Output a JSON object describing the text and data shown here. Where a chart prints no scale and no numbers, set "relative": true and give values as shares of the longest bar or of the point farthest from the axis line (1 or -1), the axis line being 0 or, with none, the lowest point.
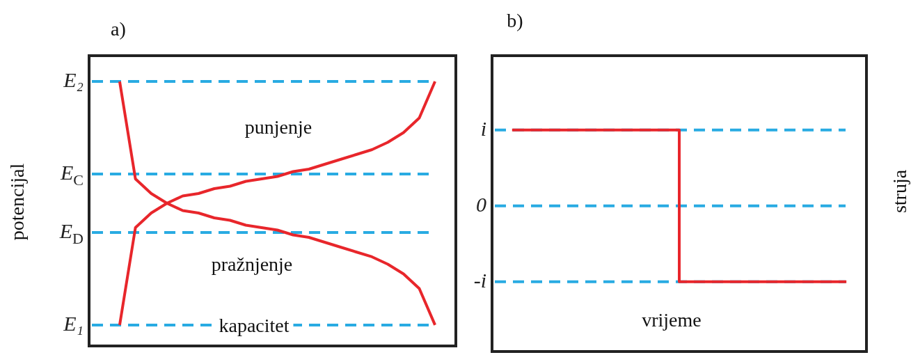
{
  "chart_data": [
    {
      "type": "line",
      "title": "a)",
      "xlabel": "kapacitet",
      "ylabel": "potencijal",
      "relative": true,
      "legend": false,
      "grid": false,
      "marker": "none",
      "categories": [
        null,
        null,
        null,
        null,
        null,
        null,
        null,
        null,
        null,
        null,
        null,
        null,
        null,
        null,
        null,
        null,
        null,
        null,
        null,
        null,
        null
      ],
      "series": [
        {
          "color": "#e8262b",
          "values": [
            0,
            0.4,
            0.46,
            0.5,
            0.53,
            0.54,
            0.56,
            0.57,
            0.59,
            0.6,
            0.61,
            0.63,
            0.64,
            0.66,
            0.68,
            0.7,
            0.72,
            0.75,
            0.79,
            0.85,
            1
          ]
        },
        {
          "color": "#e8262b",
          "values": [
            1,
            0.6,
            0.54,
            0.5,
            0.47,
            0.46,
            0.44,
            0.43,
            0.41,
            0.4,
            0.39,
            0.37,
            0.36,
            0.34,
            0.32,
            0.3,
            0.28,
            0.25,
            0.21,
            0.15,
            0
          ]
        }
      ],
      "ref_lines": [
        {
          "axis": "y",
          "value": 1,
          "label": "E₂",
          "color": "#29abe2",
          "line_style": "dashed"
        },
        {
          "axis": "y",
          "value": 0.62,
          "label": "E$_{C}$",
          "color": "#29abe2",
          "line_style": "dashed"
        },
        {
          "axis": "y",
          "value": 0.38,
          "label": "E$_{D}$",
          "color": "#29abe2",
          "line_style": "dashed"
        },
        {
          "axis": "y",
          "value": 0,
          "label": "E₁",
          "color": "#29abe2",
          "line_style": "dashed"
        }
      ],
      "annotations": [
        "punjenje",
        "pražnjenje"
      ]
    },
    {
      "type": "step",
      "title": "b)",
      "xlabel": "vrijeme",
      "y2label": "struja",
      "relative": true,
      "legend": false,
      "grid": false,
      "marker": "none",
      "categories": [
        null,
        null,
        null
      ],
      "series": [
        {
          "color": "#e8262b",
          "values": [
            1,
            1,
            -1
          ]
        }
      ],
      "ref_lines": [
        {
          "axis": "y",
          "value": 1,
          "label": "i",
          "color": "#29abe2",
          "line_style": "dashed"
        },
        {
          "axis": "y",
          "value": 0,
          "label": "0",
          "color": "#29abe2",
          "line_style": "dashed"
        },
        {
          "axis": "y",
          "value": -1,
          "label": "-i",
          "color": "#29abe2",
          "line_style": "dashed"
        }
      ]
    }
  ]
}
